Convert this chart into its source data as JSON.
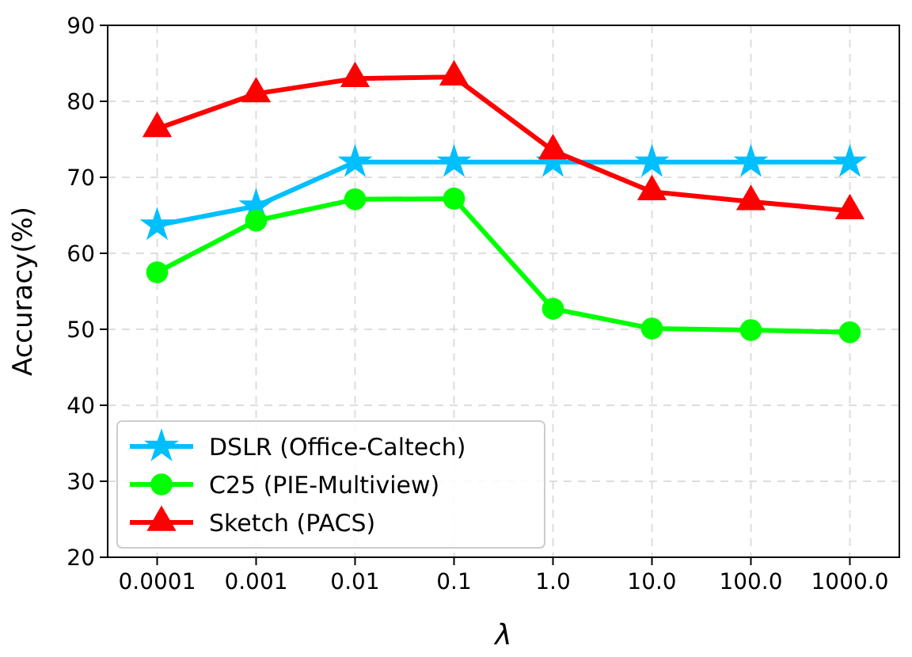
{
  "chart_data": {
    "type": "line",
    "xlabel": "λ",
    "ylabel": "Accuracy(%)",
    "categories": [
      "0.0001",
      "0.001",
      "0.01",
      "0.1",
      "1.0",
      "10.0",
      "100.0",
      "1000.0"
    ],
    "series": [
      {
        "name": "DSLR (Office-Caltech)",
        "color": "#00bfff",
        "marker": "star",
        "values": [
          63.7,
          66.2,
          72,
          72,
          72,
          72,
          72,
          72
        ]
      },
      {
        "name": "C25 (PIE-Multiview)",
        "color": "#00ff00",
        "marker": "circle",
        "values": [
          57.5,
          64.3,
          67.1,
          67.2,
          52.7,
          50.1,
          49.9,
          49.6
        ]
      },
      {
        "name": "Sketch (PACS)",
        "color": "#ff0000",
        "marker": "triangle",
        "values": [
          76.4,
          81.0,
          83.0,
          83.2,
          73.5,
          68.1,
          66.8,
          65.6
        ]
      }
    ],
    "ylim": [
      20,
      90
    ],
    "yticks": [
      20,
      30,
      40,
      50,
      60,
      70,
      80,
      90
    ],
    "grid": true,
    "legend": "bottom left",
    "line_style": "solid"
  }
}
